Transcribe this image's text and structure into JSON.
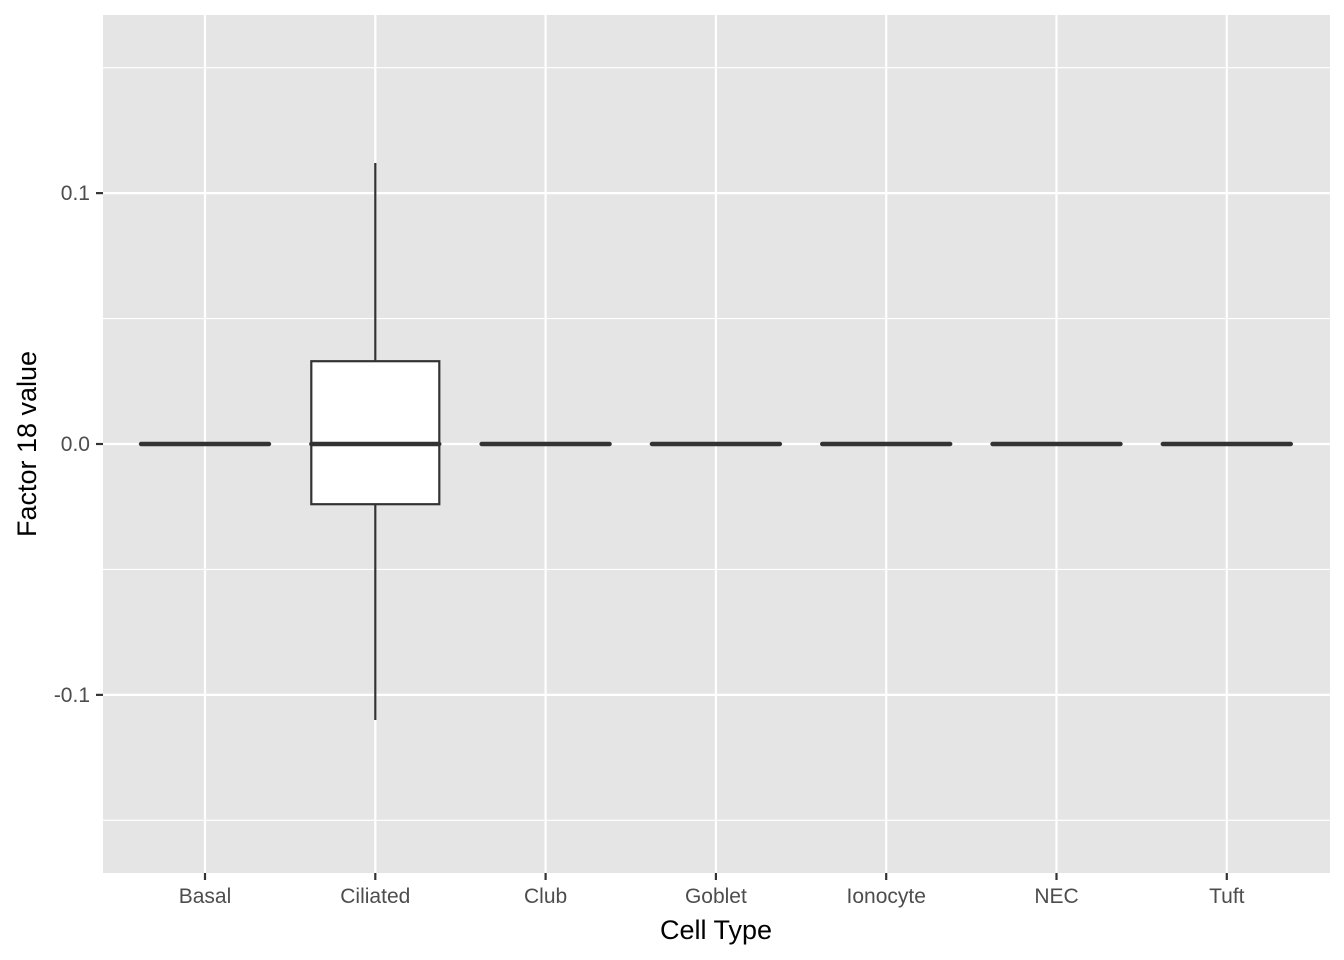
{
  "chart_data": {
    "type": "boxplot",
    "title": "",
    "xlabel": "Cell Type",
    "ylabel": "Factor 18 value",
    "categories": [
      "Basal",
      "Ciliated",
      "Club",
      "Goblet",
      "Ionocyte",
      "NEC",
      "Tuft"
    ],
    "boxes": [
      {
        "category": "Basal",
        "min": 0,
        "q1": 0,
        "median": 0,
        "q3": 0,
        "max": 0
      },
      {
        "category": "Ciliated",
        "min": -0.11,
        "q1": -0.024,
        "median": 0,
        "q3": 0.033,
        "max": 0.112
      },
      {
        "category": "Club",
        "min": 0,
        "q1": 0,
        "median": 0,
        "q3": 0,
        "max": 0
      },
      {
        "category": "Goblet",
        "min": 0,
        "q1": 0,
        "median": 0,
        "q3": 0,
        "max": 0
      },
      {
        "category": "Ionocyte",
        "min": 0,
        "q1": 0,
        "median": 0,
        "q3": 0,
        "max": 0
      },
      {
        "category": "NEC",
        "min": 0,
        "q1": 0,
        "median": 0,
        "q3": 0,
        "max": 0
      },
      {
        "category": "Tuft",
        "min": 0,
        "q1": 0,
        "median": 0,
        "q3": 0,
        "max": 0
      }
    ],
    "yticks": [
      -0.1,
      0.0,
      0.1
    ],
    "ytick_labels": [
      "-0.1",
      "0.0",
      "0.1"
    ],
    "yminor": [
      -0.15,
      -0.05,
      0.05,
      0.15
    ],
    "ylim": [
      -0.171,
      0.171
    ],
    "grid": true,
    "legend": "none",
    "colors": {
      "panel": "#e5e5e5",
      "grid": "#ffffff",
      "box_fill": "#ffffff",
      "box_line": "#333333"
    }
  }
}
